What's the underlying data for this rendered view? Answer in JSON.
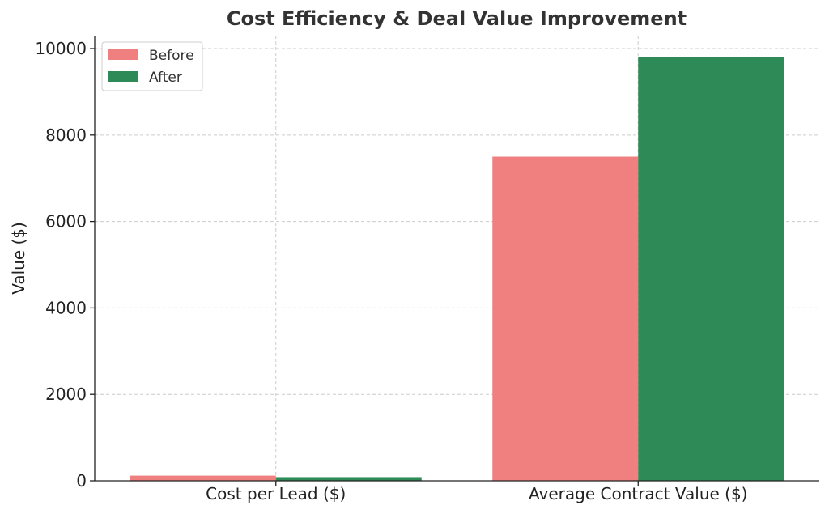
{
  "chart_data": {
    "type": "bar",
    "title": "Cost Efficiency & Deal Value Improvement",
    "xlabel": "",
    "ylabel": "Value ($)",
    "categories": [
      "Cost per Lead ($)",
      "Average Contract Value ($)"
    ],
    "series": [
      {
        "name": "Before",
        "color": "#F08080",
        "values": [
          120,
          7500
        ]
      },
      {
        "name": "After",
        "color": "#2E8B57",
        "values": [
          85,
          9800
        ]
      }
    ],
    "ylim": [
      0,
      10300
    ],
    "yticks": [
      "0",
      "2000",
      "4000",
      "6000",
      "8000",
      "10000"
    ],
    "grid": true,
    "legend_position": "top-left"
  }
}
